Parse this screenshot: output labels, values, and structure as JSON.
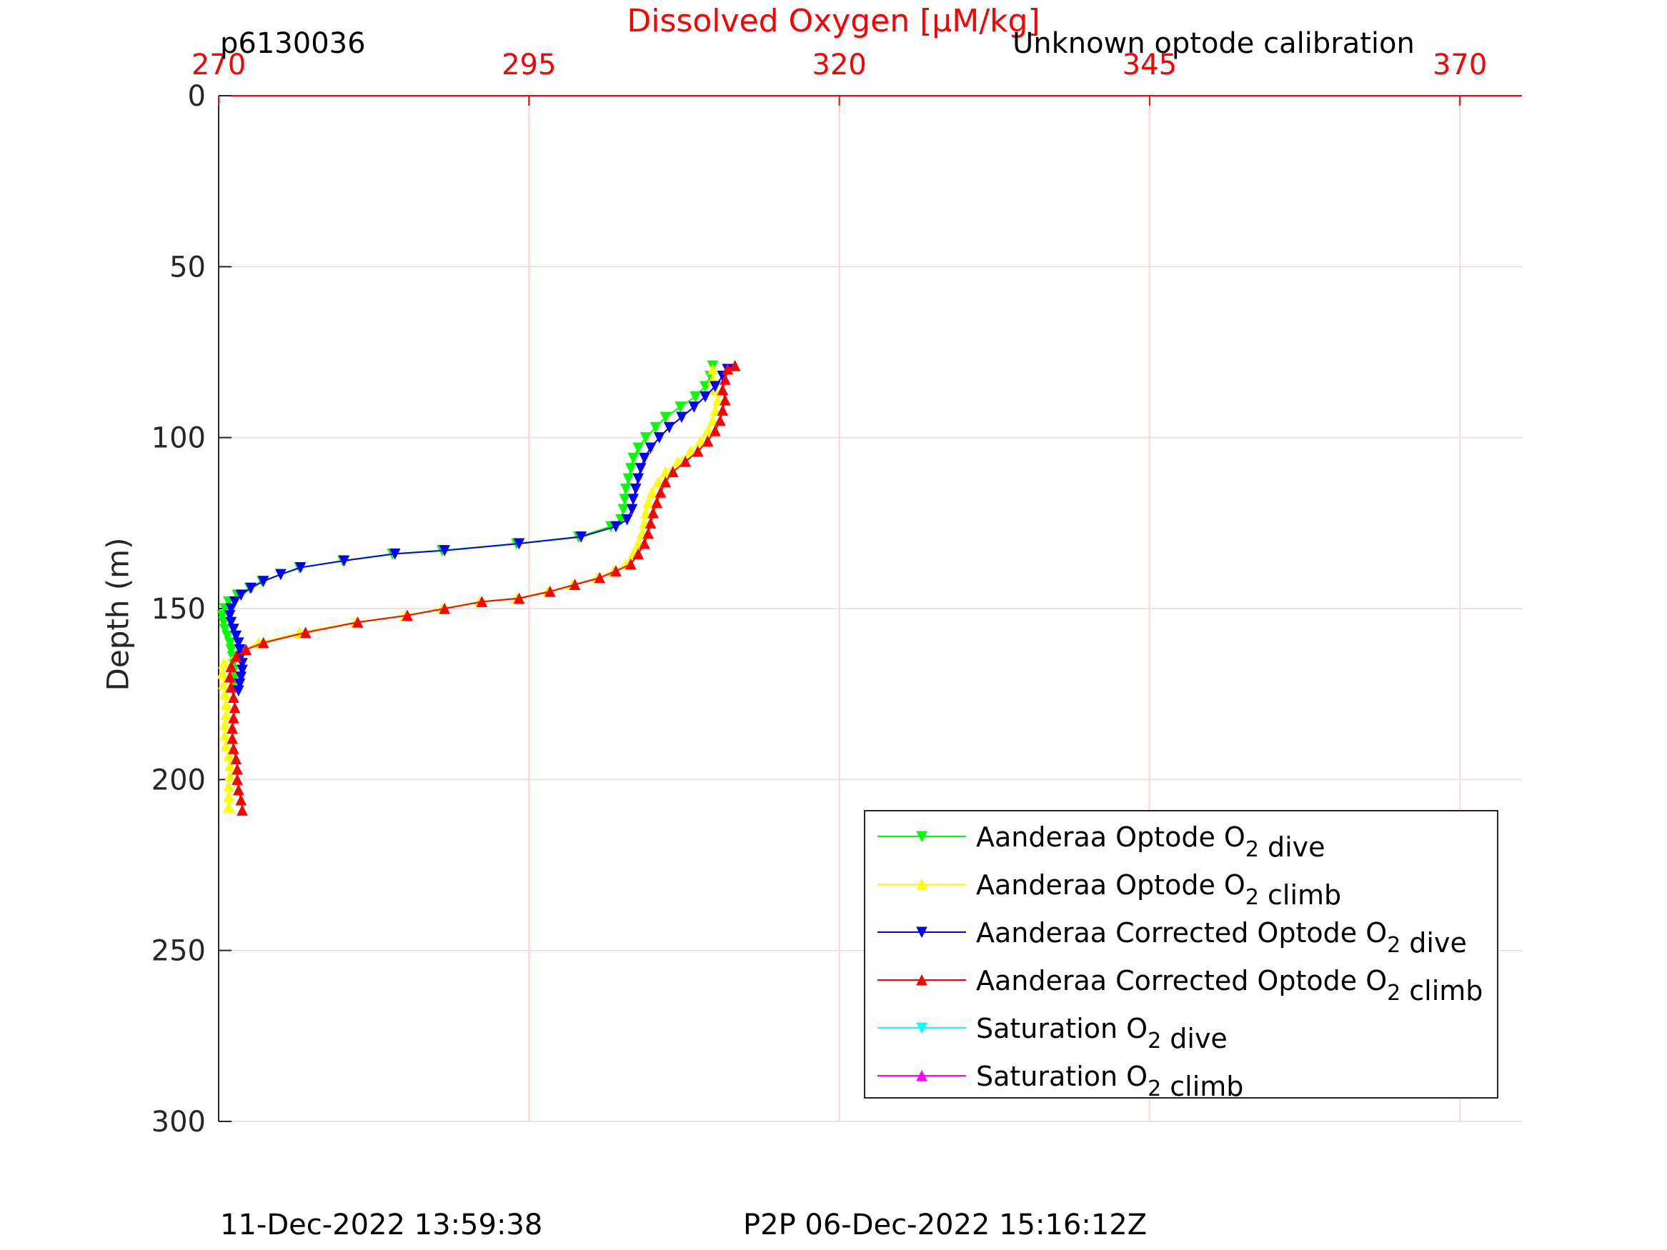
{
  "header": {
    "profile_id": "p6130036",
    "calibration_note": "Unknown optode calibration"
  },
  "footer": {
    "left_timestamp": "11-Dec-2022 13:59:38",
    "right_timestamp": "P2P 06-Dec-2022 15:16:12Z"
  },
  "chart_data": {
    "type": "line",
    "title": "",
    "xlabel": "Dissolved Oxygen [μM/kg]",
    "ylabel": "Depth (m)",
    "x_axis_position": "top",
    "y_axis_reversed": true,
    "xlim": [
      270,
      375
    ],
    "ylim": [
      0,
      300
    ],
    "x_ticks": [
      270,
      295,
      320,
      345,
      370
    ],
    "y_ticks": [
      0,
      50,
      100,
      150,
      200,
      250,
      300
    ],
    "x_tick_color": "#ff0000",
    "grid": true,
    "legend_position": "bottom-right",
    "series": [
      {
        "name": "Aanderaa Optode O2 dive",
        "color": "#00ff00",
        "marker": "triangle-down",
        "points": [
          [
            309.8,
            79
          ],
          [
            309.6,
            82
          ],
          [
            309.2,
            85
          ],
          [
            308.4,
            88
          ],
          [
            307.2,
            91
          ],
          [
            306.0,
            94
          ],
          [
            305.2,
            97
          ],
          [
            304.4,
            100
          ],
          [
            303.8,
            103
          ],
          [
            303.4,
            106
          ],
          [
            303.2,
            109
          ],
          [
            303.0,
            112
          ],
          [
            302.8,
            115
          ],
          [
            302.7,
            118
          ],
          [
            302.6,
            121
          ],
          [
            302.4,
            124
          ],
          [
            301.6,
            126
          ],
          [
            299.0,
            129
          ],
          [
            294.0,
            131
          ],
          [
            288.0,
            133
          ],
          [
            284.0,
            134
          ],
          [
            280.0,
            136
          ],
          [
            276.5,
            138
          ],
          [
            275.0,
            140
          ],
          [
            273.5,
            142
          ],
          [
            272.5,
            144
          ],
          [
            271.5,
            146
          ],
          [
            270.8,
            148
          ],
          [
            270.5,
            150
          ],
          [
            270.3,
            152
          ],
          [
            270.4,
            154
          ],
          [
            270.5,
            156
          ],
          [
            270.7,
            158
          ],
          [
            270.9,
            160
          ],
          [
            271.0,
            162
          ],
          [
            271.1,
            164
          ],
          [
            271.2,
            166
          ],
          [
            271.2,
            168
          ],
          [
            271.3,
            170
          ],
          [
            271.2,
            172
          ],
          [
            271.2,
            174
          ]
        ]
      },
      {
        "name": "Aanderaa Optode O2 climb",
        "color": "#ffff00",
        "marker": "triangle-up",
        "points": [
          [
            270.8,
            208
          ],
          [
            270.8,
            205
          ],
          [
            270.8,
            202
          ],
          [
            270.9,
            199
          ],
          [
            270.9,
            196
          ],
          [
            270.8,
            193
          ],
          [
            270.6,
            190
          ],
          [
            270.5,
            187
          ],
          [
            270.5,
            184
          ],
          [
            270.6,
            181
          ],
          [
            270.6,
            178
          ],
          [
            270.5,
            175
          ],
          [
            270.4,
            172
          ],
          [
            270.3,
            169
          ],
          [
            270.4,
            166
          ],
          [
            271.5,
            163
          ],
          [
            272.0,
            162
          ],
          [
            273.2,
            160
          ],
          [
            276.5,
            157
          ],
          [
            281.0,
            154
          ],
          [
            285.0,
            152
          ],
          [
            288.0,
            150
          ],
          [
            291.0,
            148
          ],
          [
            294.0,
            147
          ],
          [
            296.5,
            145
          ],
          [
            298.5,
            143
          ],
          [
            300.5,
            141
          ],
          [
            301.8,
            139
          ],
          [
            302.8,
            137
          ],
          [
            303.4,
            134
          ],
          [
            303.8,
            131
          ],
          [
            304.1,
            128
          ],
          [
            304.3,
            125
          ],
          [
            304.4,
            122
          ],
          [
            304.6,
            119
          ],
          [
            304.9,
            116
          ],
          [
            305.4,
            113
          ],
          [
            306.0,
            110
          ],
          [
            307.0,
            107
          ],
          [
            308.0,
            104
          ],
          [
            308.8,
            101
          ],
          [
            309.4,
            98
          ],
          [
            309.8,
            95
          ],
          [
            310.0,
            92
          ],
          [
            310.2,
            89
          ],
          [
            310.0,
            86
          ],
          [
            309.8,
            83
          ],
          [
            309.8,
            80
          ]
        ]
      },
      {
        "name": "Aanderaa Corrected Optode O2 dive",
        "color": "#0000ff",
        "marker": "triangle-down",
        "points": [
          [
            311.0,
            80
          ],
          [
            310.6,
            82
          ],
          [
            310.0,
            85
          ],
          [
            309.2,
            88
          ],
          [
            308.3,
            91
          ],
          [
            307.3,
            94
          ],
          [
            306.3,
            97
          ],
          [
            305.5,
            100
          ],
          [
            304.8,
            103
          ],
          [
            304.3,
            106
          ],
          [
            304.0,
            109
          ],
          [
            303.8,
            112
          ],
          [
            303.6,
            115
          ],
          [
            303.4,
            118
          ],
          [
            303.3,
            121
          ],
          [
            302.9,
            124
          ],
          [
            302.0,
            126
          ],
          [
            299.2,
            129
          ],
          [
            294.2,
            131
          ],
          [
            288.2,
            133
          ],
          [
            284.2,
            134
          ],
          [
            280.1,
            136
          ],
          [
            276.6,
            138
          ],
          [
            275.0,
            140
          ],
          [
            273.6,
            142
          ],
          [
            272.6,
            144
          ],
          [
            271.8,
            146
          ],
          [
            271.3,
            148
          ],
          [
            271.0,
            150
          ],
          [
            270.9,
            152
          ],
          [
            271.0,
            154
          ],
          [
            271.2,
            156
          ],
          [
            271.4,
            158
          ],
          [
            271.6,
            160
          ],
          [
            271.7,
            162
          ],
          [
            271.8,
            164
          ],
          [
            271.9,
            166
          ],
          [
            271.9,
            168
          ],
          [
            271.8,
            170
          ],
          [
            271.7,
            172
          ],
          [
            271.6,
            174
          ]
        ]
      },
      {
        "name": "Aanderaa Corrected Optode O2 climb",
        "color": "#ff0000",
        "marker": "triangle-up",
        "points": [
          [
            271.9,
            209
          ],
          [
            271.8,
            206
          ],
          [
            271.6,
            203
          ],
          [
            271.5,
            200
          ],
          [
            271.5,
            197
          ],
          [
            271.4,
            194
          ],
          [
            271.2,
            191
          ],
          [
            271.1,
            188
          ],
          [
            271.1,
            185
          ],
          [
            271.2,
            182
          ],
          [
            271.3,
            179
          ],
          [
            271.2,
            176
          ],
          [
            271.0,
            173
          ],
          [
            270.9,
            170
          ],
          [
            271.0,
            167
          ],
          [
            271.4,
            164
          ],
          [
            272.2,
            162
          ],
          [
            273.6,
            160
          ],
          [
            277.0,
            157
          ],
          [
            281.2,
            154
          ],
          [
            285.2,
            152
          ],
          [
            288.2,
            150
          ],
          [
            291.2,
            148
          ],
          [
            294.2,
            147
          ],
          [
            296.7,
            145
          ],
          [
            298.7,
            143
          ],
          [
            300.7,
            141
          ],
          [
            302.0,
            139
          ],
          [
            303.2,
            137
          ],
          [
            303.8,
            134
          ],
          [
            304.3,
            131
          ],
          [
            304.6,
            128
          ],
          [
            304.8,
            125
          ],
          [
            305.0,
            122
          ],
          [
            305.3,
            119
          ],
          [
            305.6,
            116
          ],
          [
            306.0,
            113
          ],
          [
            306.6,
            110
          ],
          [
            307.6,
            107
          ],
          [
            308.6,
            104
          ],
          [
            309.4,
            101
          ],
          [
            310.0,
            98
          ],
          [
            310.4,
            95
          ],
          [
            310.6,
            92
          ],
          [
            310.8,
            89
          ],
          [
            310.6,
            86
          ],
          [
            310.8,
            83
          ],
          [
            311.0,
            80
          ],
          [
            311.6,
            79
          ]
        ]
      },
      {
        "name": "Saturation O2 dive",
        "color": "#00ffff",
        "marker": "triangle-down",
        "points": []
      },
      {
        "name": "Saturation O2 climb",
        "color": "#ff00ff",
        "marker": "triangle-up",
        "points": []
      }
    ]
  }
}
